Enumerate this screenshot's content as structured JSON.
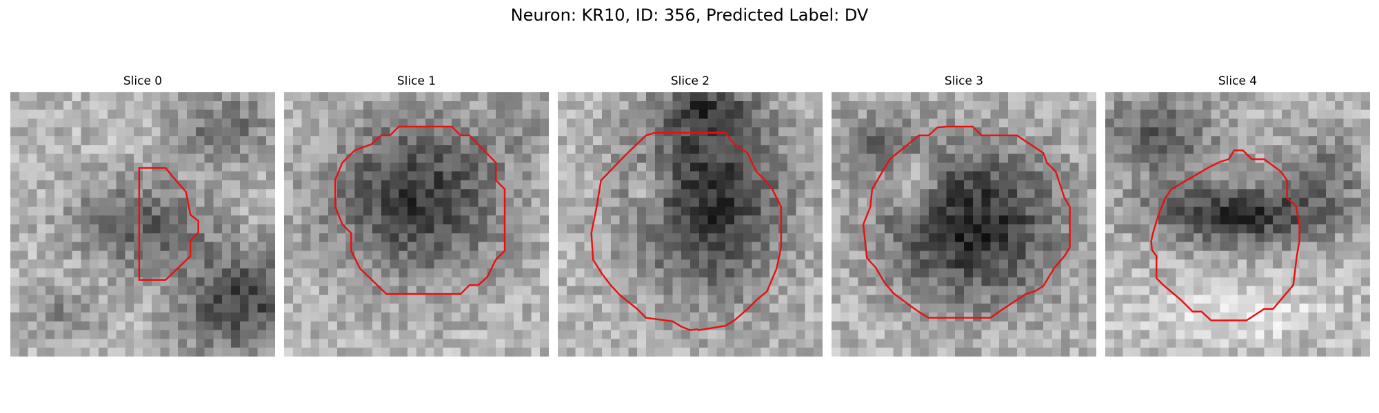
{
  "figure": {
    "title": "Neuron: KR10, ID: 356, Predicted Label: DV"
  },
  "panels": [
    {
      "title": "Slice 0"
    },
    {
      "title": "Slice 1"
    },
    {
      "title": "Slice 2"
    },
    {
      "title": "Slice 3"
    },
    {
      "title": "Slice 4"
    }
  ],
  "colors": {
    "contour": "#e8100f",
    "background": "#ffffff"
  }
}
